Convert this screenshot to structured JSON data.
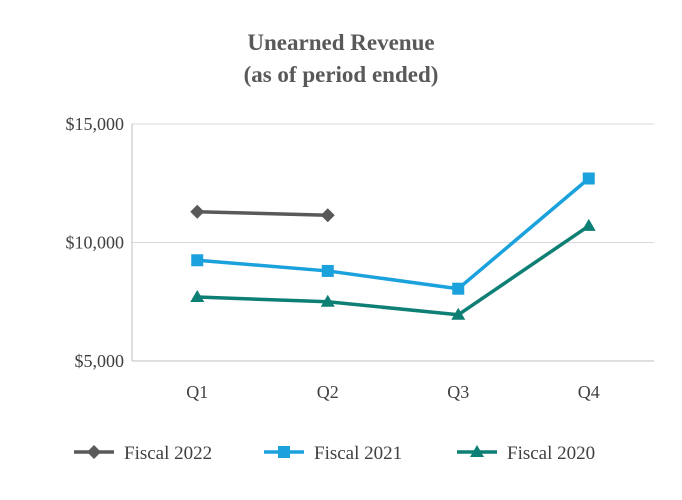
{
  "chart_data": {
    "type": "line",
    "title": "Unearned Revenue",
    "subtitle": "(as of period ended)",
    "categories": [
      "Q1",
      "Q2",
      "Q3",
      "Q4"
    ],
    "ylim": [
      5000,
      15000
    ],
    "yticks": [
      5000,
      10000,
      15000
    ],
    "ytick_labels": [
      "$5,000",
      "$10,000",
      "$15,000"
    ],
    "grid": true,
    "legend_position": "bottom",
    "series": [
      {
        "name": "Fiscal 2022",
        "color": "#595959",
        "marker": "diamond",
        "values": [
          11300,
          11150,
          null,
          null
        ]
      },
      {
        "name": "Fiscal 2021",
        "color": "#1ba1dc",
        "marker": "square",
        "values": [
          9250,
          8800,
          8050,
          12700
        ]
      },
      {
        "name": "Fiscal 2020",
        "color": "#0e7f74",
        "marker": "triangle",
        "values": [
          7700,
          7500,
          6950,
          10700
        ]
      }
    ]
  }
}
